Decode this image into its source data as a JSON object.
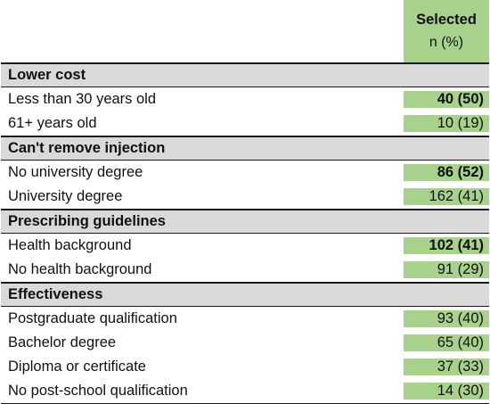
{
  "header": {
    "title": "Selected",
    "subtitle": "n (%)"
  },
  "sections": [
    {
      "title": "Lower cost",
      "rows": [
        {
          "label": "Less than 30 years old",
          "value": "40 (50)",
          "bold": true
        },
        {
          "label": "61+ years old",
          "value": "10 (19)",
          "bold": false
        }
      ]
    },
    {
      "title": "Can't remove injection",
      "rows": [
        {
          "label": "No university degree",
          "value": "86 (52)",
          "bold": true
        },
        {
          "label": "University degree",
          "value": "162 (41)",
          "bold": false
        }
      ]
    },
    {
      "title": "Prescribing guidelines",
      "rows": [
        {
          "label": "Health background",
          "value": "102 (41)",
          "bold": true
        },
        {
          "label": "No health background",
          "value": "91 (29)",
          "bold": false
        }
      ]
    },
    {
      "title": "Effectiveness",
      "rows": [
        {
          "label": "Postgraduate qualification",
          "value": "93 (40)",
          "bold": false
        },
        {
          "label": "Bachelor degree",
          "value": "65 (40)",
          "bold": false
        },
        {
          "label": "Diploma or certificate",
          "value": "37 (33)",
          "bold": false
        },
        {
          "label": "No post-school qualification",
          "value": "14 (30)",
          "bold": false
        }
      ]
    }
  ],
  "colors": {
    "highlight": "#a9d18e",
    "section_bg": "#d9d9d9"
  }
}
